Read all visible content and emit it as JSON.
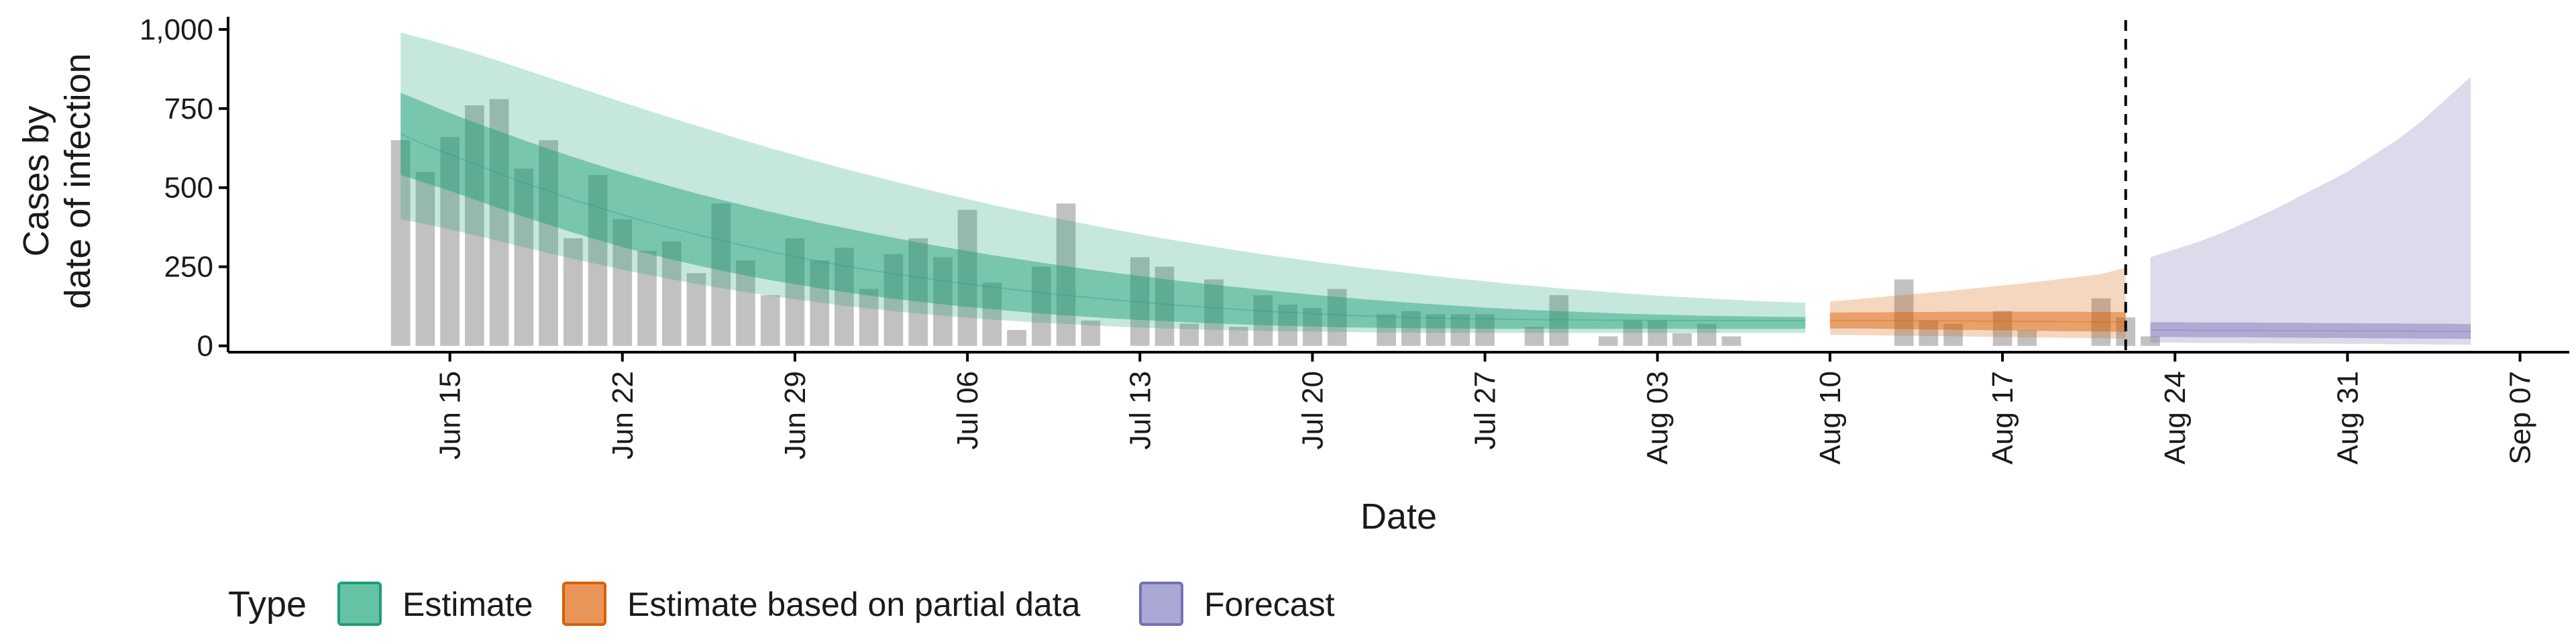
{
  "chart_data": {
    "type": "area",
    "title": "",
    "xlabel": "Date",
    "ylabel_lines": [
      "Cases by",
      "date of infection"
    ],
    "ylim": [
      -20,
      1040
    ],
    "yticks": [
      0,
      250,
      500,
      750,
      1000
    ],
    "ytick_labels": [
      "0",
      "250",
      "500",
      "750",
      "1,000"
    ],
    "xlim": [
      "2020-06-06",
      "2020-09-09"
    ],
    "xticks": [
      "2020-06-15",
      "2020-06-22",
      "2020-06-29",
      "2020-07-06",
      "2020-07-13",
      "2020-07-20",
      "2020-07-27",
      "2020-08-03",
      "2020-08-10",
      "2020-08-17",
      "2020-08-24",
      "2020-08-31",
      "2020-09-07"
    ],
    "xtick_labels": [
      "Jun 15",
      "Jun 22",
      "Jun 29",
      "Jul 06",
      "Jul 13",
      "Jul 20",
      "Jul 27",
      "Aug 03",
      "Aug 10",
      "Aug 17",
      "Aug 24",
      "Aug 31",
      "Sep 07"
    ],
    "vline_date": "2020-08-22",
    "grid": false,
    "legend": {
      "title": "Type",
      "position": "bottom",
      "entries": [
        {
          "label": "Estimate",
          "fill": "#66c2a5",
          "stroke": "#1b9e77"
        },
        {
          "label": "Estimate based on partial data",
          "fill": "#e8955a",
          "stroke": "#d95f02"
        },
        {
          "label": "Forecast",
          "fill": "#aaa8d4",
          "stroke": "#7570b3"
        }
      ]
    },
    "colors": {
      "estimate": "#1b9e77",
      "partial": "#d95f02",
      "forecast": "#7570b3",
      "bars": "#a6a6a6",
      "vline": "#000000"
    },
    "observed_cases": {
      "start_date": "2020-06-13",
      "values": [
        650,
        550,
        660,
        760,
        780,
        560,
        650,
        340,
        540,
        400,
        300,
        330,
        230,
        450,
        270,
        160,
        340,
        270,
        310,
        180,
        290,
        340,
        280,
        430,
        200,
        50,
        250,
        450,
        80,
        0,
        280,
        250,
        70,
        210,
        60,
        160,
        130,
        120,
        180,
        0,
        100,
        110,
        100,
        100,
        100,
        0,
        60,
        160,
        0,
        30,
        80,
        80,
        40,
        70,
        30,
        0,
        0,
        0,
        0,
        0,
        0,
        210,
        80,
        70,
        0,
        110,
        50,
        0,
        0,
        150,
        90,
        30
      ]
    },
    "series": [
      {
        "name": "Estimate",
        "start_date": "2020-06-13",
        "end_date": "2020-08-09",
        "median": [
          670,
          635,
          605,
          575,
          545,
          515,
          490,
          462,
          438,
          414,
          392,
          372,
          352,
          333,
          315,
          298,
          282,
          267,
          253,
          240,
          228,
          217,
          206,
          196,
          186,
          177,
          168,
          160,
          152,
          145,
          138,
          132,
          126,
          120,
          115,
          110,
          106,
          102,
          98,
          95,
          92,
          90,
          88,
          86,
          85,
          84,
          83,
          82,
          82,
          81,
          81,
          80,
          80,
          80,
          80,
          80,
          80,
          80
        ],
        "inner_low": [
          540,
          515,
          490,
          462,
          435,
          408,
          383,
          358,
          335,
          312,
          292,
          273,
          255,
          238,
          222,
          208,
          195,
          182,
          170,
          159,
          149,
          140,
          131,
          123,
          116,
          109,
          102,
          96,
          91,
          86,
          82,
          78,
          74,
          71,
          68,
          65,
          63,
          61,
          59,
          58,
          57,
          56,
          55,
          55,
          54,
          54,
          54,
          54,
          54,
          54,
          54,
          54,
          54,
          54,
          54,
          54,
          54,
          54
        ],
        "inner_high": [
          800,
          768,
          736,
          706,
          678,
          650,
          623,
          597,
          572,
          548,
          525,
          503,
          482,
          462,
          443,
          424,
          406,
          389,
          373,
          357,
          342,
          327,
          313,
          300,
          287,
          275,
          263,
          252,
          241,
          231,
          221,
          211,
          202,
          193,
          185,
          177,
          169,
          162,
          155,
          148,
          142,
          136,
          131,
          126,
          121,
          117,
          113,
          110,
          107,
          104,
          101,
          99,
          97,
          95,
          94,
          93,
          92,
          91
        ],
        "outer_low": [
          400,
          385,
          368,
          350,
          331,
          312,
          293,
          275,
          258,
          241,
          225,
          210,
          196,
          183,
          170,
          158,
          147,
          137,
          127,
          118,
          110,
          102,
          95,
          89,
          83,
          78,
          73,
          69,
          65,
          61,
          58,
          55,
          53,
          51,
          49,
          47,
          46,
          45,
          44,
          43,
          42,
          42,
          41,
          41,
          41,
          41,
          41,
          41,
          41,
          41,
          41,
          41,
          41,
          41,
          41,
          41,
          41,
          41
        ],
        "outer_high": [
          990,
          970,
          948,
          925,
          900,
          874,
          848,
          822,
          796,
          770,
          745,
          720,
          696,
          672,
          648,
          625,
          603,
          581,
          560,
          540,
          520,
          501,
          482,
          464,
          446,
          429,
          413,
          397,
          382,
          367,
          353,
          339,
          326,
          313,
          301,
          289,
          278,
          267,
          257,
          247,
          238,
          229,
          220,
          212,
          204,
          196,
          189,
          182,
          176,
          170,
          164,
          159,
          154,
          150,
          146,
          142,
          139,
          136
        ]
      },
      {
        "name": "Estimate based on partial data",
        "start_date": "2020-08-10",
        "end_date": "2020-08-22",
        "median": [
          80,
          80,
          80,
          80,
          79,
          79,
          78,
          78,
          77,
          77,
          76,
          76,
          75
        ],
        "inner_low": [
          55,
          55,
          54,
          53,
          52,
          51,
          50,
          49,
          48,
          47,
          46,
          45,
          44
        ],
        "inner_high": [
          105,
          106,
          106,
          107,
          107,
          108,
          108,
          108,
          108,
          108,
          108,
          107,
          107
        ],
        "outer_low": [
          35,
          34,
          33,
          32,
          31,
          30,
          29,
          28,
          27,
          26,
          25,
          24,
          23
        ],
        "outer_high": [
          140,
          147,
          154,
          161,
          168,
          175,
          183,
          191,
          199,
          208,
          217,
          227,
          247
        ]
      },
      {
        "name": "Forecast",
        "start_date": "2020-08-23",
        "end_date": "2020-09-05",
        "median": [
          50,
          50,
          49,
          49,
          49,
          48,
          48,
          48,
          47,
          47,
          47,
          46,
          46,
          46
        ],
        "inner_low": [
          28,
          28,
          27,
          27,
          27,
          26,
          26,
          25,
          25,
          24,
          24,
          23,
          23,
          22
        ],
        "inner_high": [
          75,
          75,
          74,
          74,
          74,
          73,
          73,
          72,
          72,
          71,
          71,
          70,
          70,
          69
        ],
        "outer_low": [
          10,
          10,
          9,
          9,
          8,
          8,
          7,
          7,
          6,
          6,
          5,
          5,
          4,
          4
        ],
        "outer_high": [
          280,
          305,
          330,
          360,
          395,
          430,
          470,
          510,
          550,
          600,
          650,
          710,
          780,
          850
        ]
      }
    ]
  }
}
